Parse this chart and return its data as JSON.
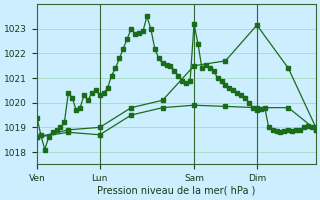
{
  "bg_color": "#cceeff",
  "grid_color": "#aaddcc",
  "line_color": "#1a6b1a",
  "marker_color": "#1a6b1a",
  "xlabel": "Pression niveau de la mer( hPa )",
  "ylim": [
    1017.5,
    1024.0
  ],
  "yticks": [
    1018,
    1019,
    1020,
    1021,
    1022,
    1023
  ],
  "day_labels": [
    "Ven",
    "Lun",
    "Sam",
    "Dim"
  ],
  "day_positions": [
    0,
    16,
    40,
    56
  ],
  "total_points": 72,
  "series1": [
    1019.4,
    1018.7,
    1018.1,
    1018.6,
    1018.8,
    1018.9,
    1019.0,
    1019.2,
    1020.4,
    1020.2,
    1019.7,
    1019.8,
    1020.3,
    1020.1,
    1020.4,
    1020.5,
    1020.3,
    1020.4,
    1020.6,
    1021.1,
    1021.4,
    1021.8,
    1022.2,
    1022.6,
    1023.0,
    1022.8,
    1022.85,
    1022.9,
    1023.5,
    1023.0,
    1022.2,
    1021.8,
    1021.6,
    1021.55,
    1021.5,
    1021.3,
    1021.1,
    1020.9,
    1020.8,
    1020.9,
    1023.2,
    1022.4,
    1021.4,
    1021.55,
    1021.4,
    1021.3,
    1021.0,
    1020.9,
    1020.7,
    1020.6,
    1020.5,
    1020.4,
    1020.3,
    1020.2,
    1020.0,
    1019.8,
    1019.7,
    1019.75,
    1019.8,
    1019.0,
    1018.9,
    1018.85,
    1018.8,
    1018.85,
    1018.9,
    1018.85,
    1018.9,
    1018.9,
    1019.0,
    1019.05,
    1019.0,
    1018.9
  ],
  "series2_x": [
    0,
    8,
    16,
    24,
    32,
    40,
    48,
    56,
    64,
    71
  ],
  "series2_y": [
    1018.6,
    1018.8,
    1018.7,
    1019.5,
    1019.8,
    1019.9,
    1019.85,
    1019.8,
    1019.8,
    1018.9
  ],
  "series3_x": [
    0,
    8,
    16,
    24,
    32,
    40,
    48,
    56,
    64,
    71
  ],
  "series3_y": [
    1018.6,
    1018.9,
    1019.0,
    1019.8,
    1020.1,
    1021.5,
    1021.7,
    1023.15,
    1021.4,
    1019.0
  ],
  "vlines": [
    16,
    40,
    56
  ]
}
